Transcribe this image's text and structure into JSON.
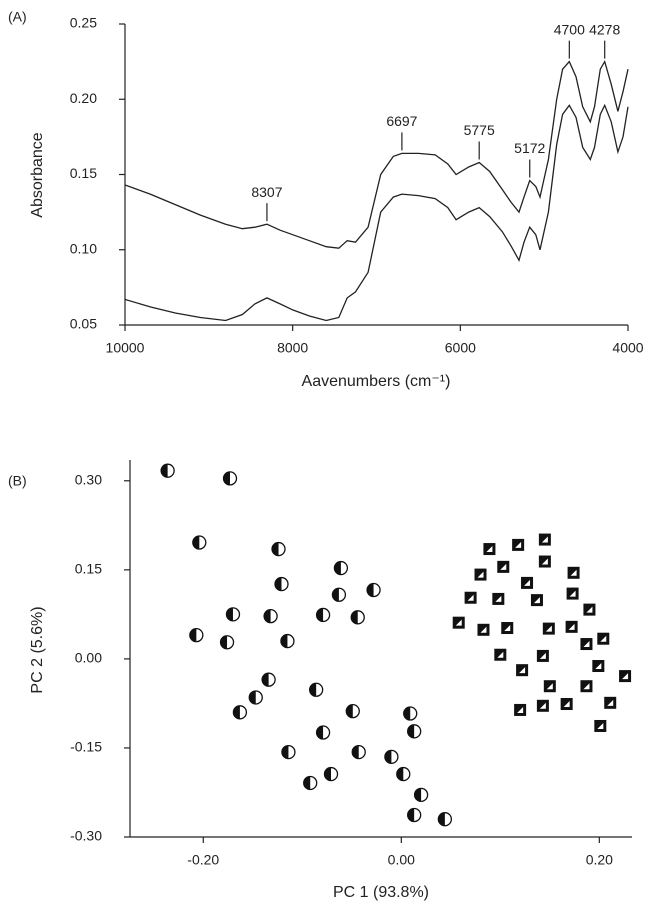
{
  "chart_data": [
    {
      "type": "line",
      "panel_label": "(A)",
      "y_label": "Absorbance",
      "x_label": "Aavenumbers (cm⁻¹)",
      "xlim": [
        10000,
        4000
      ],
      "xticks": [
        10000,
        8000,
        6000,
        4000
      ],
      "ylim": [
        0.05,
        0.25
      ],
      "yticks": [
        {
          "value": 0.05,
          "label": "0.05"
        },
        {
          "value": 0.1,
          "label": "0.10"
        },
        {
          "value": 0.15,
          "label": "0.15"
        },
        {
          "value": 0.2,
          "label": "0.20"
        },
        {
          "value": 0.25,
          "label": "0.25"
        }
      ],
      "peak_labels": [
        8307,
        6697,
        5775,
        5172,
        4700,
        4278
      ],
      "x": [
        10000,
        9700,
        9400,
        9100,
        8800,
        8600,
        8450,
        8307,
        8150,
        8000,
        7800,
        7600,
        7450,
        7350,
        7250,
        7100,
        6950,
        6800,
        6697,
        6500,
        6300,
        6150,
        6050,
        5900,
        5775,
        5650,
        5500,
        5400,
        5300,
        5240,
        5172,
        5100,
        5050,
        4950,
        4850,
        4780,
        4700,
        4620,
        4540,
        4450,
        4400,
        4330,
        4278,
        4200,
        4120,
        4060,
        4000
      ],
      "series": [
        {
          "color": "#222",
          "values": [
            0.143,
            0.137,
            0.13,
            0.123,
            0.117,
            0.114,
            0.115,
            0.117,
            0.113,
            0.11,
            0.106,
            0.102,
            0.101,
            0.106,
            0.105,
            0.115,
            0.15,
            0.162,
            0.164,
            0.164,
            0.163,
            0.157,
            0.15,
            0.155,
            0.158,
            0.152,
            0.14,
            0.132,
            0.125,
            0.135,
            0.146,
            0.142,
            0.135,
            0.16,
            0.2,
            0.22,
            0.225,
            0.215,
            0.195,
            0.185,
            0.195,
            0.22,
            0.225,
            0.21,
            0.192,
            0.205,
            0.22
          ]
        },
        {
          "color": "#222",
          "values": [
            0.067,
            0.062,
            0.058,
            0.055,
            0.053,
            0.057,
            0.064,
            0.068,
            0.064,
            0.06,
            0.056,
            0.053,
            0.055,
            0.068,
            0.072,
            0.085,
            0.125,
            0.135,
            0.137,
            0.136,
            0.134,
            0.128,
            0.12,
            0.125,
            0.128,
            0.122,
            0.112,
            0.103,
            0.093,
            0.105,
            0.115,
            0.11,
            0.1,
            0.125,
            0.17,
            0.19,
            0.196,
            0.188,
            0.168,
            0.16,
            0.168,
            0.19,
            0.196,
            0.185,
            0.165,
            0.175,
            0.195
          ]
        }
      ]
    },
    {
      "type": "scatter",
      "panel_label": "(B)",
      "y_label": "PC 2 (5.6%)",
      "x_label": "PC 1 (93.8%)",
      "xlim": [
        -0.274,
        0.233
      ],
      "xticks": [
        {
          "value": -0.2,
          "label": "-0.20"
        },
        {
          "value": 0,
          "label": "0.00"
        },
        {
          "value": 0.2,
          "label": "0.20"
        }
      ],
      "ylim": [
        -0.3,
        0.335
      ],
      "yticks": [
        {
          "value": -0.3,
          "label": "-0.30"
        },
        {
          "value": -0.15,
          "label": "-0.15"
        },
        {
          "value": 0,
          "label": "0.00"
        },
        {
          "value": 0.15,
          "label": "0.15"
        },
        {
          "value": 0.3,
          "label": "0.30"
        }
      ],
      "series": [
        {
          "marker": "half-circle",
          "color": "#111",
          "x": [
            -0.236,
            -0.173,
            -0.204,
            -0.124,
            -0.061,
            -0.121,
            -0.063,
            -0.028,
            -0.17,
            -0.207,
            -0.176,
            -0.132,
            -0.115,
            -0.079,
            -0.044,
            -0.134,
            -0.086,
            -0.147,
            -0.163,
            -0.049,
            0.009,
            0.013,
            -0.114,
            -0.079,
            -0.043,
            -0.071,
            -0.092,
            -0.01,
            0.002,
            0.02,
            0.013,
            0.044
          ],
          "y": [
            0.317,
            0.304,
            0.196,
            0.185,
            0.153,
            0.126,
            0.108,
            0.116,
            0.075,
            0.04,
            0.028,
            0.072,
            0.03,
            0.074,
            0.07,
            -0.035,
            -0.052,
            -0.065,
            -0.09,
            -0.088,
            -0.092,
            -0.122,
            -0.157,
            -0.124,
            -0.157,
            -0.194,
            -0.209,
            -0.165,
            -0.194,
            -0.229,
            -0.263,
            -0.27
          ]
        },
        {
          "marker": "square",
          "color": "#111",
          "x": [
            0.089,
            0.118,
            0.145,
            0.08,
            0.103,
            0.145,
            0.174,
            0.127,
            0.173,
            0.07,
            0.098,
            0.137,
            0.19,
            0.058,
            0.083,
            0.107,
            0.149,
            0.172,
            0.204,
            0.187,
            0.1,
            0.143,
            0.199,
            0.122,
            0.226,
            0.15,
            0.187,
            0.211,
            0.12,
            0.143,
            0.167,
            0.201
          ],
          "y": [
            0.185,
            0.192,
            0.201,
            0.142,
            0.155,
            0.164,
            0.145,
            0.128,
            0.11,
            0.103,
            0.101,
            0.099,
            0.083,
            0.061,
            0.049,
            0.052,
            0.051,
            0.054,
            0.034,
            0.025,
            0.007,
            0.005,
            -0.012,
            -0.019,
            -0.029,
            -0.046,
            -0.046,
            -0.074,
            -0.086,
            -0.079,
            -0.076,
            -0.113
          ]
        }
      ]
    }
  ]
}
